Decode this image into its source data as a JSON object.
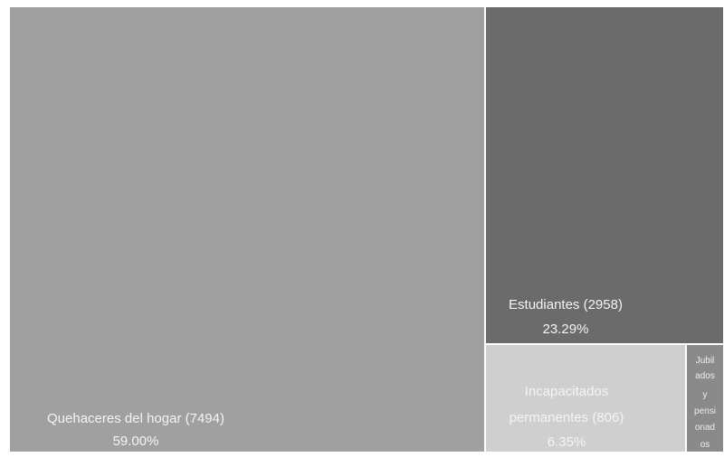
{
  "chart_data": {
    "type": "treemap",
    "items": [
      {
        "name": "Quehaceres del hogar",
        "value": 7494,
        "percent": "59.00%",
        "label": "Quehaceres del hogar (7494)",
        "color": "#a0a0a0"
      },
      {
        "name": "Estudiantes",
        "value": 2958,
        "percent": "23.29%",
        "label": "Estudiantes (2958)",
        "color": "#6b6b6b"
      },
      {
        "name": "Incapacitados permanentes",
        "value": 806,
        "percent": "6.35%",
        "label": "Incapacitados permanentes (806)",
        "label_lines": [
          "Incapacitados",
          "permanentes (806)"
        ],
        "color": "#cfcfcf"
      },
      {
        "name": "Jubilados y pensionados",
        "value": null,
        "percent": "",
        "label": "Jubilados y pensionados",
        "label_lines": [
          "Jubil",
          "ados",
          "y",
          "pensi",
          "onad",
          "os"
        ],
        "color": "#8a8a8a"
      }
    ]
  }
}
